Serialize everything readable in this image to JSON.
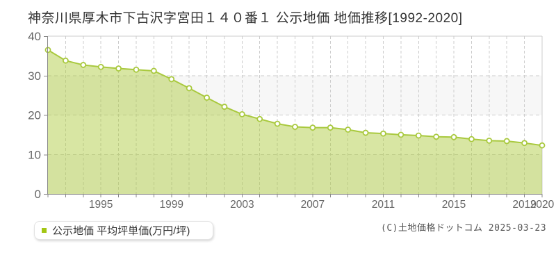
{
  "title": "神奈川県厚木市下古沢字宮田１４０番１ 公示地価 地価推移[1992-2020]",
  "legend": {
    "label": "公示地価 平均坪単価(万円/坪)",
    "marker_color": "#a3c614"
  },
  "copyright": "(C)土地価格ドットコム 2025-03-23",
  "chart_data": {
    "type": "area",
    "title": "神奈川県厚木市下古沢字宮田１４０番１ 公示地価 地価推移[1992-2020]",
    "x": [
      1992,
      1993,
      1994,
      1995,
      1996,
      1997,
      1998,
      1999,
      2000,
      2001,
      2002,
      2003,
      2004,
      2005,
      2006,
      2007,
      2008,
      2009,
      2010,
      2011,
      2012,
      2013,
      2014,
      2015,
      2016,
      2017,
      2018,
      2019,
      2020
    ],
    "series": [
      {
        "name": "公示地価 平均坪単価(万円/坪)",
        "values": [
          36.5,
          33.8,
          32.7,
          32.2,
          31.8,
          31.5,
          31.2,
          29.1,
          26.8,
          24.4,
          22.1,
          20.2,
          19.0,
          17.8,
          17.0,
          16.8,
          16.8,
          16.3,
          15.5,
          15.3,
          15.0,
          14.8,
          14.5,
          14.4,
          13.9,
          13.5,
          13.4,
          12.9,
          12.3
        ]
      }
    ],
    "xlabel": "",
    "ylabel": "万円/坪",
    "ylim": [
      0,
      40
    ],
    "yticks": [
      0,
      10,
      20,
      30,
      40
    ],
    "xticks": [
      1995,
      1999,
      2003,
      2007,
      2011,
      2015,
      2019,
      2020
    ],
    "grid": true,
    "legend_position": "bottom-left",
    "colors": {
      "line": "#a9c93e",
      "area_fill": "rgba(173,203,62,0.48)",
      "marker_fill": "#ffffff",
      "grid": "#cccccc",
      "band": "#f7f7f7",
      "axis": "#888888",
      "border": "#cccccc",
      "tick_text": "#666666"
    }
  }
}
